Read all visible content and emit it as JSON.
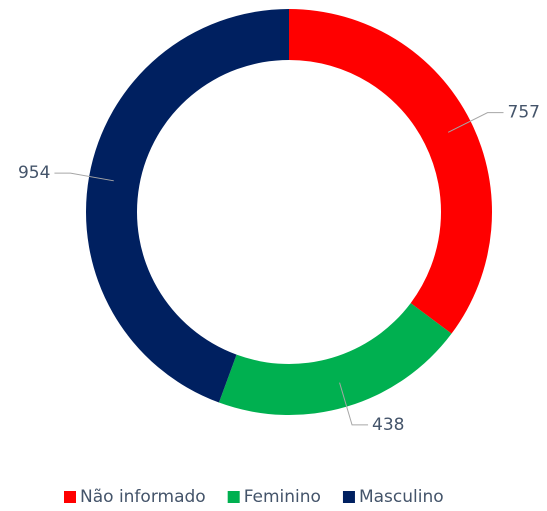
{
  "chart_data": {
    "type": "donut",
    "categories": [
      "Não informado",
      "Feminino",
      "Masculino"
    ],
    "values": [
      757,
      438,
      954
    ],
    "colors": [
      "#ff0000",
      "#00b050",
      "#002060"
    ],
    "legend": "bottom"
  }
}
